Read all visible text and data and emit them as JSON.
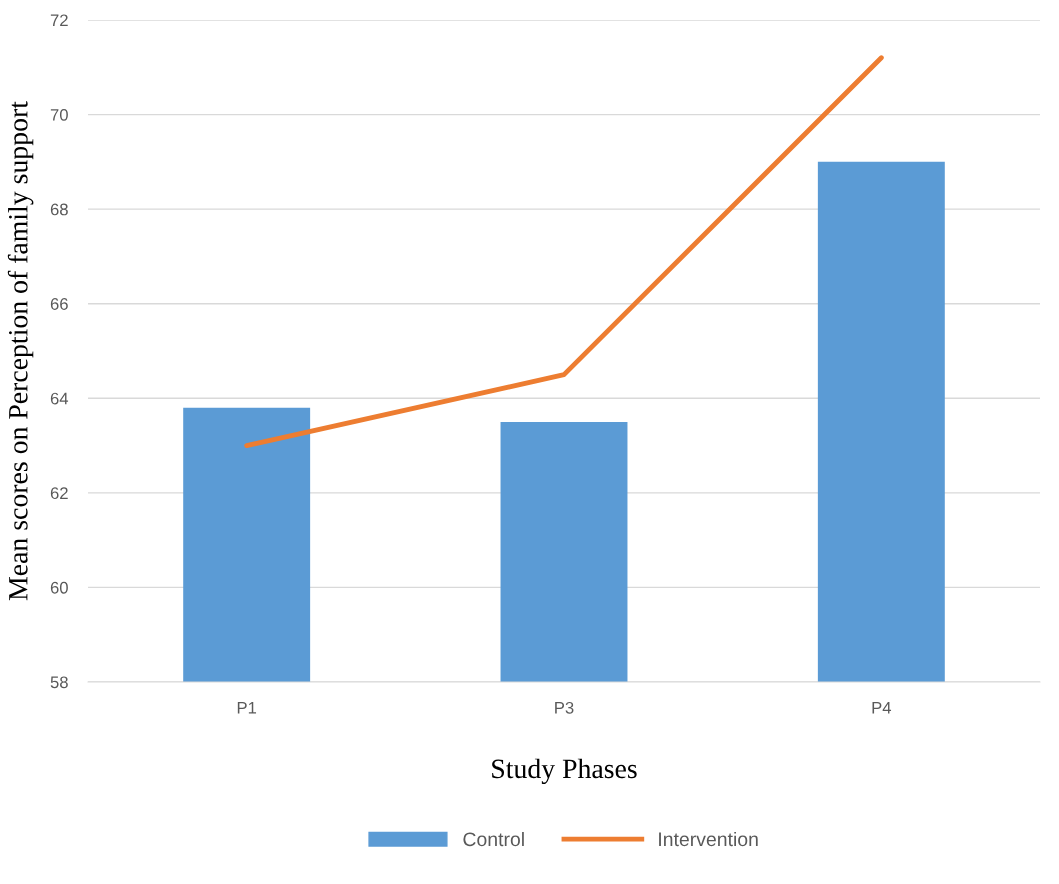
{
  "chart_data": {
    "type": "bar",
    "xlabel": "Study Phases",
    "ylabel": "Mean scores on Perception of family support",
    "categories": [
      "P1",
      "P3",
      "P4"
    ],
    "series": [
      {
        "name": "Control",
        "color": "#5b9bd5",
        "values": [
          63.8,
          63.5,
          69.0
        ]
      },
      {
        "name": "Intervention",
        "type": "line",
        "color": "#ed7d31",
        "values": [
          63.0,
          64.5,
          71.2
        ]
      }
    ],
    "ylim": [
      58,
      72
    ],
    "yticks": [
      58,
      60,
      62,
      64,
      66,
      68,
      70,
      72
    ],
    "grid": "y",
    "legend": "bottom",
    "marker": "none",
    "line_style": "solid"
  }
}
